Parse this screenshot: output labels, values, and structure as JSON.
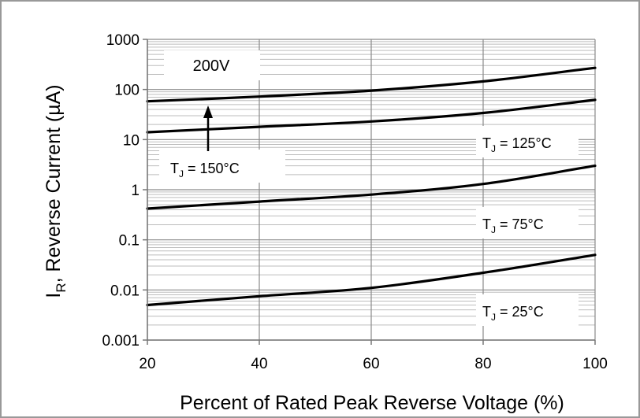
{
  "chart_data": {
    "type": "line",
    "xlabel": "Percent of Rated Peak Reverse Voltage (%)",
    "ylabel": {
      "main": "I",
      "sub": "R",
      "rest": ", Reverse Current (µA)"
    },
    "y_scale": "log",
    "xlim": [
      20,
      100
    ],
    "ylim": [
      0.001,
      1000
    ],
    "x_ticks": [
      "20",
      "40",
      "60",
      "80",
      "100"
    ],
    "y_ticks": [
      "1000",
      "100",
      "10",
      "1",
      "0.1",
      "0.01",
      "0.001"
    ],
    "grid": true,
    "box_label": "200V",
    "x": [
      20,
      40,
      60,
      80,
      100
    ],
    "series": [
      {
        "name": "TJ = 150°C",
        "values": [
          58,
          72,
          95,
          145,
          270
        ]
      },
      {
        "name": "TJ = 125°C",
        "values": [
          14,
          18,
          23,
          34,
          62
        ]
      },
      {
        "name": "TJ = 75°C",
        "values": [
          0.42,
          0.58,
          0.8,
          1.3,
          3.0
        ]
      },
      {
        "name": "TJ = 25°C",
        "values": [
          0.005,
          0.0075,
          0.011,
          0.022,
          0.05
        ]
      }
    ],
    "labels": [
      {
        "pre": "T",
        "sub": "J",
        "post": " = 150°C"
      },
      {
        "pre": "T",
        "sub": "J",
        "post": " = 125°C"
      },
      {
        "pre": "T",
        "sub": "J",
        "post": " = 75°C"
      },
      {
        "pre": "T",
        "sub": "J",
        "post": " = 25°C"
      }
    ]
  }
}
